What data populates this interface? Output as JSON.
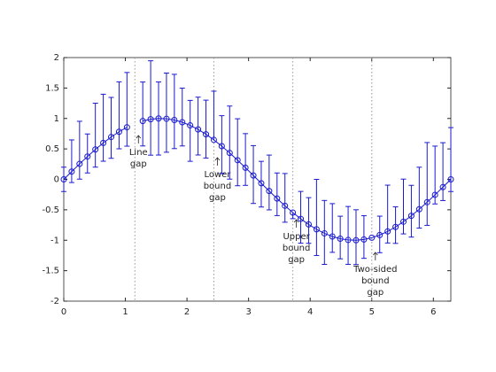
{
  "chart_data": {
    "type": "errorbar",
    "x": [
      0,
      0.1282,
      0.2565,
      0.3847,
      0.5129,
      0.6411,
      0.7694,
      0.8976,
      1.0258,
      1.1541,
      1.2823,
      1.4105,
      1.5387,
      1.667,
      1.7952,
      1.9234,
      2.0516,
      2.1799,
      2.3081,
      2.4363,
      2.5646,
      2.6928,
      2.821,
      2.9492,
      3.0775,
      3.2057,
      3.3339,
      3.4622,
      3.5904,
      3.7186,
      3.8468,
      3.9751,
      4.1033,
      4.2315,
      4.3598,
      4.488,
      4.6162,
      4.7444,
      4.8727,
      5.0009,
      5.1291,
      5.2574,
      5.3856,
      5.5138,
      5.6421,
      5.7703,
      5.8985,
      6.0267,
      6.155,
      6.2832
    ],
    "series": [
      {
        "color": "#1a1ad0",
        "values": [
          0,
          0.1279,
          0.2537,
          0.3753,
          0.4907,
          0.5981,
          0.6957,
          0.7818,
          0.8551,
          null,
          0.9587,
          0.9872,
          0.9995,
          0.9954,
          0.9749,
          0.9385,
          0.8866,
          0.8202,
          0.7403,
          0.6482,
          0.5455,
          0.4339,
          0.3151,
          0.1912,
          0.0641,
          -0.0641,
          -0.1912,
          -0.3151,
          -0.4339,
          -0.5455,
          -0.6482,
          -0.7403,
          -0.8202,
          -0.8866,
          -0.9385,
          -0.9749,
          -0.9954,
          -0.9995,
          -0.9872,
          -0.9587,
          -0.9144,
          -0.8551,
          -0.7818,
          -0.6957,
          -0.5981,
          -0.4907,
          -0.3753,
          -0.2537,
          -0.1279,
          0
        ],
        "upper_errors": [
          0.2,
          0.52,
          0.7,
          0.37,
          0.76,
          0.8,
          0.65,
          0.82,
          0.9,
          null,
          0.64,
          0.96,
          0.6,
          0.75,
          0.75,
          0.56,
          0.41,
          0.53,
          0.56,
          0.8,
          0.5,
          0.77,
          0.68,
          0.56,
          0.49,
          0.36,
          0.59,
          0.42,
          0.53,
          null,
          0.45,
          0.44,
          0.82,
          0.54,
          0.54,
          0.37,
          0.55,
          0.5,
          0.39,
          null,
          0.31,
          0.76,
          0.33,
          0.7,
          0.5,
          0.69,
          0.98,
          0.8,
          0.73,
          0.85
        ],
        "lower_errors": [
          0.2,
          0.18,
          0.25,
          0.27,
          0.29,
          0.3,
          0.35,
          0.28,
          0.31,
          null,
          0.41,
          0.59,
          0.6,
          0.55,
          0.47,
          0.39,
          0.59,
          0.42,
          0.39,
          null,
          0.45,
          0.43,
          0.42,
          0.29,
          0.46,
          0.39,
          0.31,
          0.28,
          0.27,
          0.1,
          0.4,
          0.31,
          0.43,
          0.51,
          0.26,
          0.33,
          0.4,
          0.4,
          0.31,
          null,
          0.29,
          0.19,
          0.27,
          0.2,
          0.35,
          0.31,
          0.38,
          0.15,
          0.22,
          0.2
        ]
      }
    ],
    "xlim": [
      0,
      6.2832
    ],
    "ylim": [
      -2,
      2
    ],
    "xticks": [
      0,
      1,
      2,
      3,
      4,
      5,
      6
    ],
    "yticks": [
      -2,
      -1.5,
      -1,
      -0.5,
      0,
      0.5,
      1,
      1.5,
      2
    ],
    "annotations": [
      {
        "x": 1.1541,
        "lines": [
          "Line",
          "gap"
        ]
      },
      {
        "x": 2.4363,
        "lines": [
          "Lower",
          "bound",
          "gap"
        ]
      },
      {
        "x": 3.7186,
        "lines": [
          "Upper",
          "bound",
          "gap"
        ]
      },
      {
        "x": 5.0009,
        "lines": [
          "Two-sided",
          "bound",
          "gap"
        ]
      }
    ]
  }
}
